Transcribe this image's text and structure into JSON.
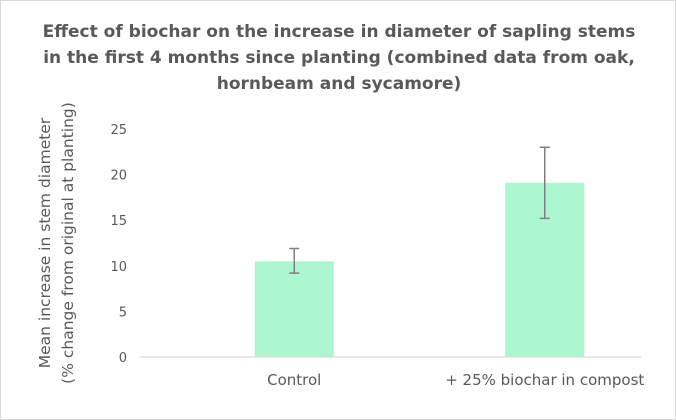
{
  "chart_data": {
    "type": "bar",
    "title": "Effect of biochar on the increase in diameter of sapling stems in the first 4 months since planting (combined data from oak, hornbeam and sycamore)",
    "xlabel": "",
    "ylabel": "Mean increase in stem diameter (% change from original at planting)",
    "ylabel_lines": [
      "Mean increase in stem diameter",
      "(% change from original at planting)"
    ],
    "categories": [
      "Control",
      "+ 25% biochar in compost"
    ],
    "values": [
      10.5,
      19.1
    ],
    "error_bars": [
      [
        9.2,
        11.9
      ],
      [
        15.2,
        23.0
      ]
    ],
    "ylim": [
      0,
      25
    ],
    "yticks": [
      0,
      5,
      10,
      15,
      20,
      25
    ],
    "grid": false,
    "legend": "none",
    "colors": {
      "bar": "#adf7d0",
      "error_bar": "#7f7f7f",
      "text": "#595959",
      "axis": "#d9d9d9"
    }
  }
}
